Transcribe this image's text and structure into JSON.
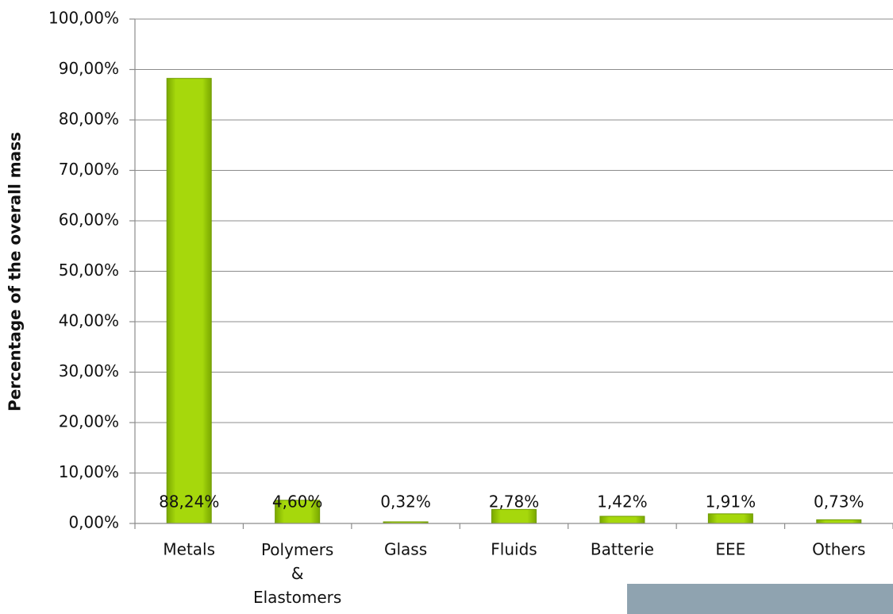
{
  "chart_data": {
    "type": "bar",
    "y_label": "Percentage of the overall mass",
    "categories": [
      "Metals",
      "Polymers & Elastomers",
      "Glass",
      "Fluids",
      "Batterie",
      "EEE",
      "Others"
    ],
    "values": [
      88.24,
      4.6,
      0.32,
      2.78,
      1.42,
      1.91,
      0.73
    ],
    "value_labels": [
      "88,24%",
      "4,60%",
      "0,32%",
      "2,78%",
      "1,42%",
      "1,91%",
      "0,73%"
    ],
    "color": "#99cc00",
    "ylim": [
      0,
      100
    ],
    "yticks": [
      {
        "value": 0,
        "label": "0,00%"
      },
      {
        "value": 10,
        "label": "10,00%"
      },
      {
        "value": 20,
        "label": "20,00%"
      },
      {
        "value": 30,
        "label": "30,00%"
      },
      {
        "value": 40,
        "label": "40,00%"
      },
      {
        "value": 50,
        "label": "50,00%"
      },
      {
        "value": 60,
        "label": "60,00%"
      },
      {
        "value": 70,
        "label": "70,00%"
      },
      {
        "value": 80,
        "label": "80,00%"
      },
      {
        "value": 90,
        "label": "90,00%"
      },
      {
        "value": 100,
        "label": "100,00%"
      }
    ],
    "grid": true
  }
}
